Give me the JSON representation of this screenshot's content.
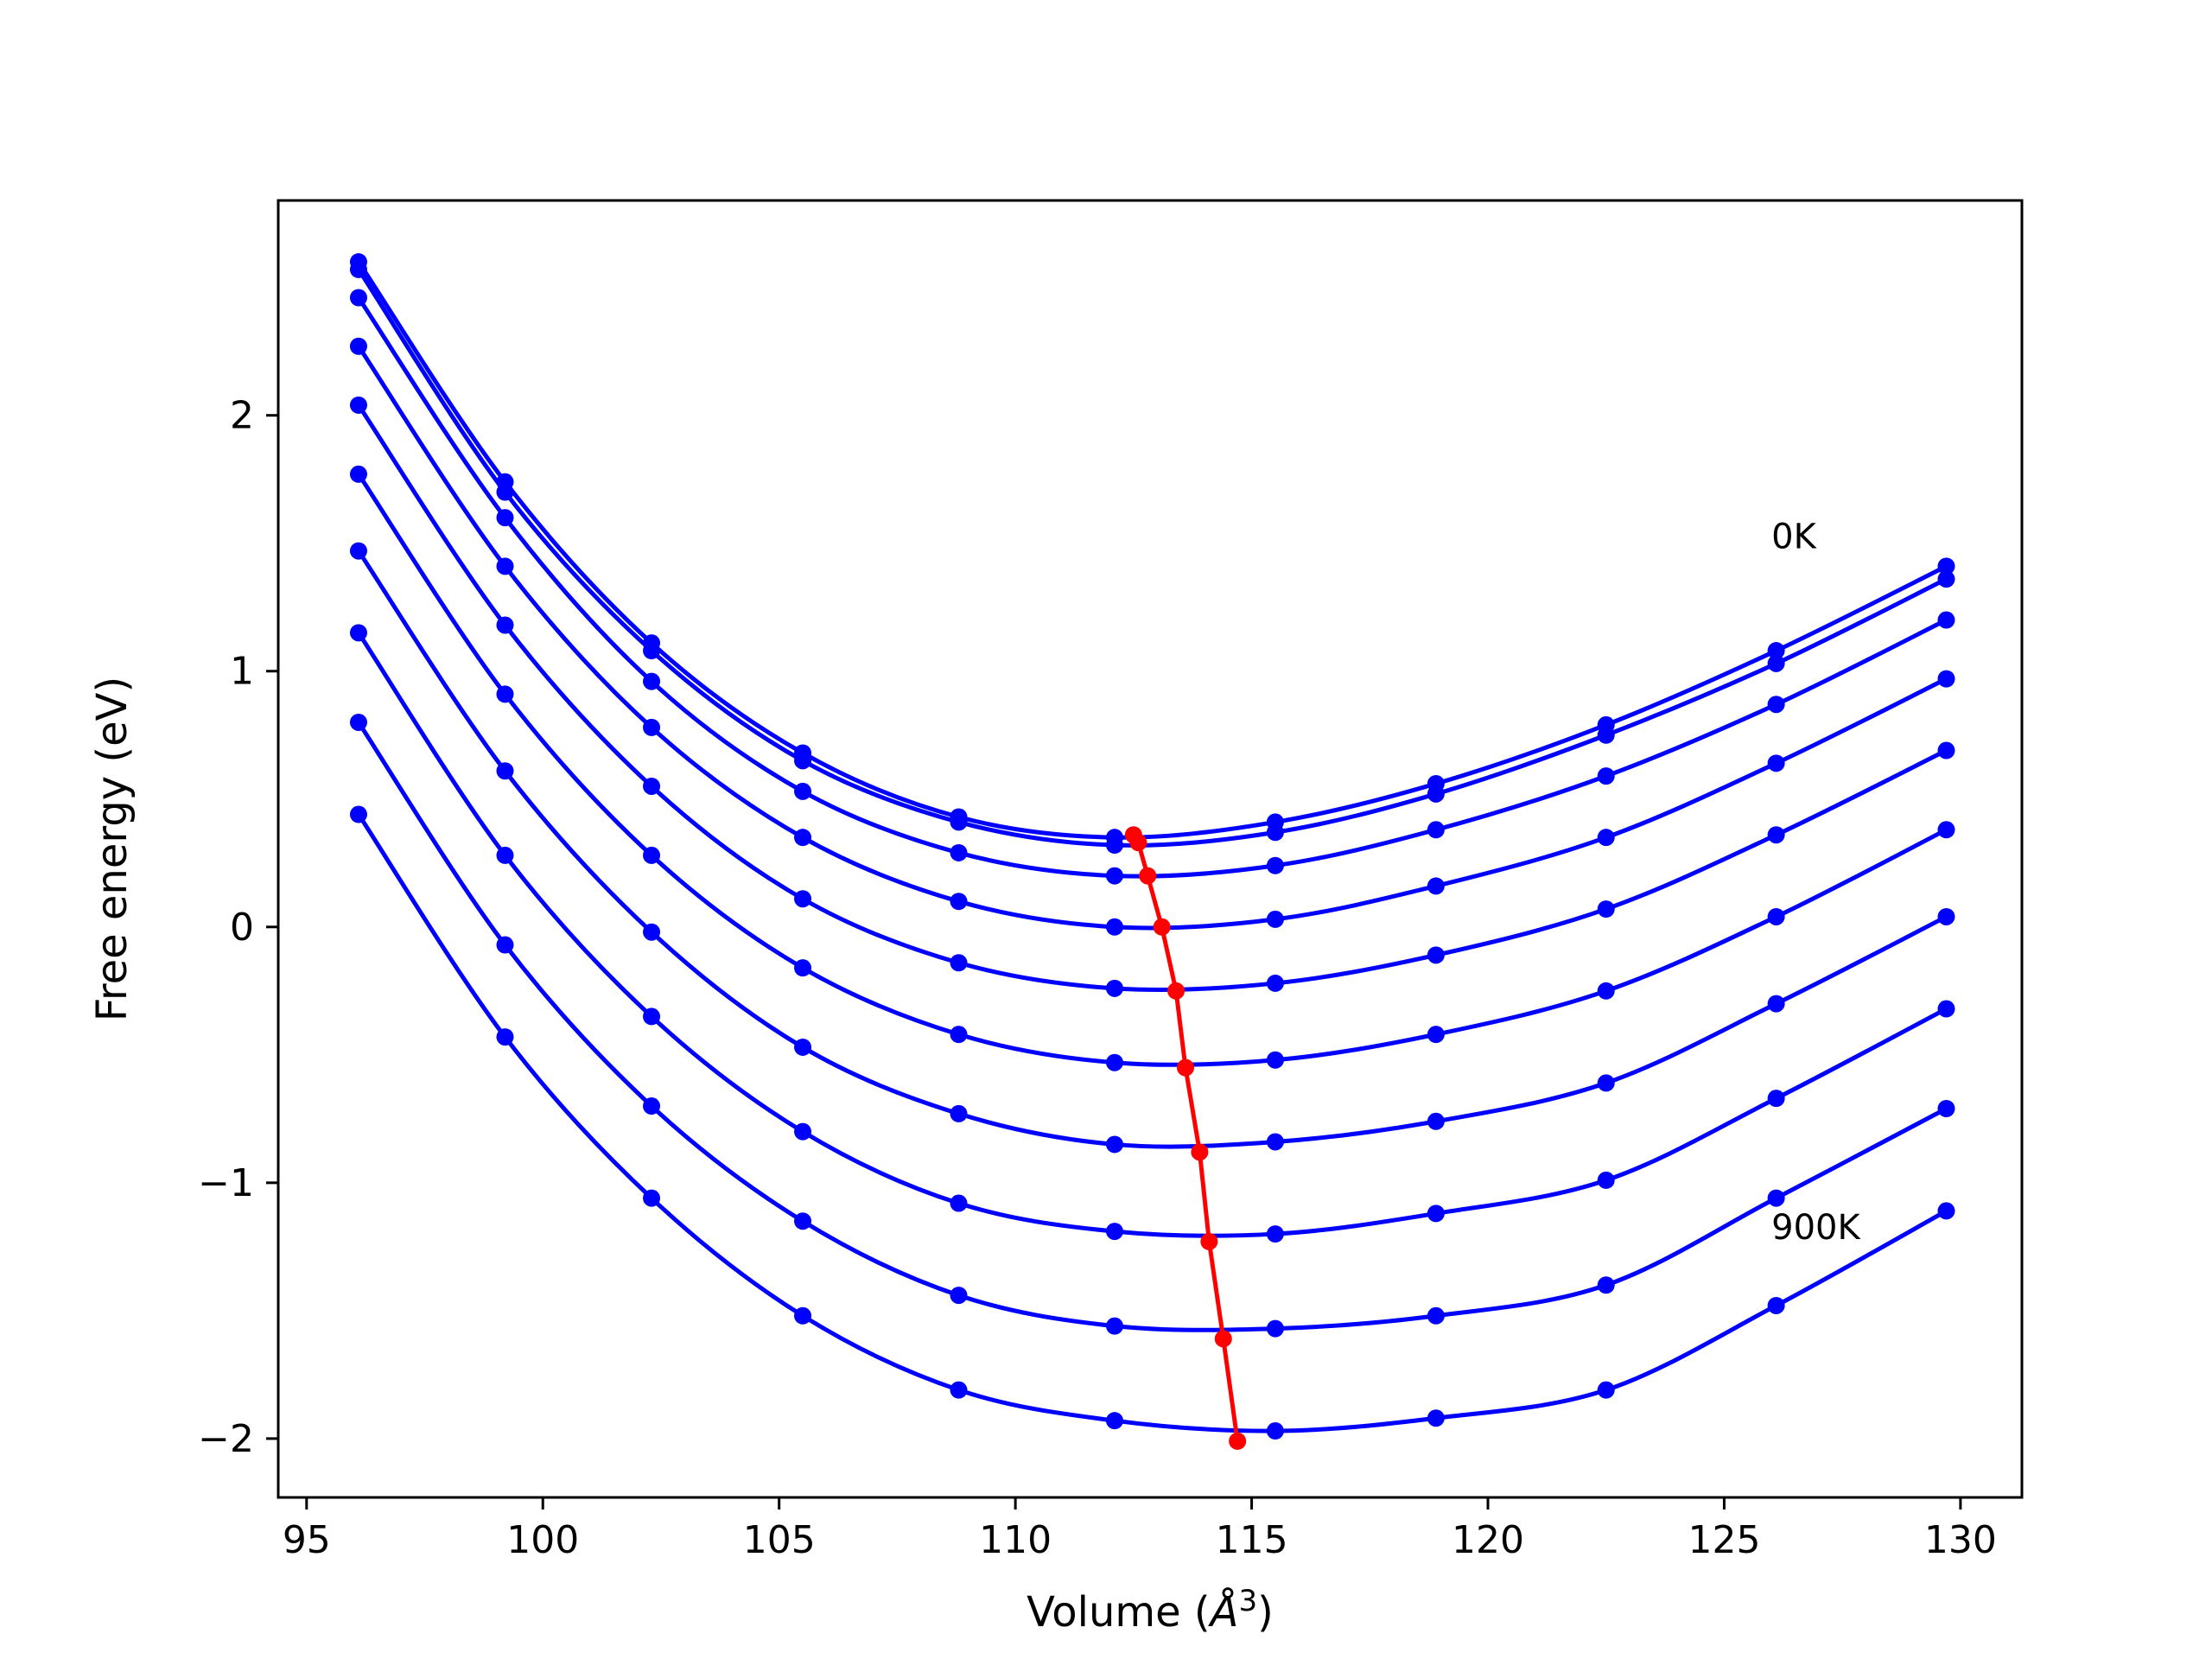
{
  "chart_data": {
    "type": "line",
    "xlabel": "Volume (",
    "xlabel_symbol": "Å",
    "xlabel_sup": "3",
    "xlabel_close": ")",
    "ylabel": "Free energy (eV)",
    "xlim": [
      94.4,
      131.3
    ],
    "ylim": [
      -2.23,
      2.84
    ],
    "xticks": [
      95,
      100,
      105,
      110,
      115,
      120,
      125,
      130
    ],
    "yticks": [
      -2,
      -1,
      0,
      1,
      2
    ],
    "grid": false,
    "curve_color": "#0000ff",
    "minima_color": "#ff0000",
    "annotations": [
      {
        "text": "0K",
        "x": 126.0,
        "y": 1.48
      },
      {
        "text": "900K",
        "x": 126.0,
        "y": -1.22
      }
    ],
    "volumes": [
      96.1,
      99.2,
      102.3,
      105.5,
      108.8,
      112.1,
      115.5,
      118.9,
      122.5,
      126.1,
      129.7
    ],
    "series": [
      {
        "values": [
          2.6,
          1.74,
          1.11,
          0.68,
          0.43,
          0.35,
          0.41,
          0.56,
          0.79,
          1.08,
          1.41
        ],
        "min_x": 112.5,
        "min_y": 0.36
      },
      {
        "values": [
          2.57,
          1.7,
          1.08,
          0.65,
          0.41,
          0.32,
          0.37,
          0.52,
          0.75,
          1.03,
          1.36
        ],
        "min_x": 112.6,
        "min_y": 0.33
      },
      {
        "values": [
          2.46,
          1.6,
          0.96,
          0.53,
          0.29,
          0.2,
          0.24,
          0.38,
          0.59,
          0.87,
          1.2
        ],
        "min_x": 112.8,
        "min_y": 0.2
      },
      {
        "values": [
          2.27,
          1.41,
          0.78,
          0.35,
          0.1,
          0.0,
          0.03,
          0.16,
          0.35,
          0.64,
          0.97
        ],
        "min_x": 113.1,
        "min_y": 0.0
      },
      {
        "values": [
          2.04,
          1.18,
          0.55,
          0.11,
          -0.14,
          -0.24,
          -0.22,
          -0.11,
          0.07,
          0.36,
          0.69
        ],
        "min_x": 113.4,
        "min_y": -0.25
      },
      {
        "values": [
          1.77,
          0.91,
          0.28,
          -0.16,
          -0.42,
          -0.53,
          -0.52,
          -0.42,
          -0.25,
          0.04,
          0.38
        ],
        "min_x": 113.6,
        "min_y": -0.55
      },
      {
        "values": [
          1.47,
          0.61,
          -0.02,
          -0.47,
          -0.73,
          -0.85,
          -0.84,
          -0.76,
          -0.61,
          -0.3,
          0.04
        ],
        "min_x": 113.9,
        "min_y": -0.88
      },
      {
        "values": [
          1.15,
          0.28,
          -0.35,
          -0.8,
          -1.08,
          -1.19,
          -1.2,
          -1.12,
          -0.99,
          -0.67,
          -0.32
        ],
        "min_x": 114.1,
        "min_y": -1.23
      },
      {
        "values": [
          0.8,
          -0.07,
          -0.7,
          -1.15,
          -1.44,
          -1.56,
          -1.57,
          -1.52,
          -1.4,
          -1.06,
          -0.71
        ],
        "min_x": 114.4,
        "min_y": -1.61
      },
      {
        "values": [
          0.44,
          -0.43,
          -1.06,
          -1.52,
          -1.81,
          -1.93,
          -1.97,
          -1.92,
          -1.81,
          -1.48,
          -1.11
        ],
        "min_x": 114.7,
        "min_y": -2.01
      }
    ]
  }
}
